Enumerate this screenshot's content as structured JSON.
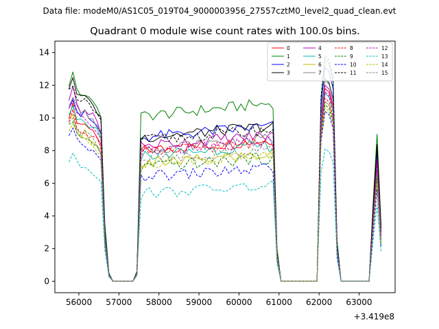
{
  "header": {
    "data_file": "Data file: modeM0/AS1C05_019T04_9000003956_27557cztM0_level2_quad_clean.evt",
    "title": "Quadrant 0 module wise count rates with 100.0s bins."
  },
  "chart_data": {
    "type": "line",
    "title": "Quadrant 0 module wise count rates with 100.0s bins.",
    "xlabel": "",
    "ylabel": "",
    "x_offset_label": "+3.419e8",
    "xlim": [
      55400,
      63900
    ],
    "ylim": [
      -0.7,
      14.7
    ],
    "xticks": [
      56000,
      57000,
      58000,
      59000,
      60000,
      61000,
      62000,
      63000
    ],
    "yticks": [
      0,
      2,
      4,
      6,
      8,
      10,
      12,
      14
    ],
    "x_start": 55750,
    "x_step": 100,
    "segments": [
      {
        "from": 55750,
        "to": 56550,
        "kind": "on",
        "shape": "decline",
        "ramp": [
          1.0,
          1.05,
          0.97,
          0.94,
          0.95,
          0.92,
          0.9,
          0.88,
          0.83
        ]
      },
      {
        "from": 56650,
        "to": 56750,
        "kind": "ramp",
        "factors": [
          0.35,
          0.05
        ]
      },
      {
        "from": 56850,
        "to": 57350,
        "kind": "off"
      },
      {
        "from": 57450,
        "to": 57450,
        "kind": "ramp",
        "factors": [
          0.06
        ]
      },
      {
        "from": 57550,
        "to": 60850,
        "kind": "on",
        "shape": "plateau"
      },
      {
        "from": 60950,
        "to": 60950,
        "kind": "ramp",
        "factors": [
          0.2
        ]
      },
      {
        "from": 61050,
        "to": 61950,
        "kind": "off"
      },
      {
        "from": 62050,
        "to": 62350,
        "kind": "peak",
        "factors": [
          0.82,
          1.0,
          0.98,
          0.9
        ]
      },
      {
        "from": 62450,
        "to": 62450,
        "kind": "ramp",
        "factors": [
          0.25
        ]
      },
      {
        "from": 62550,
        "to": 63250,
        "kind": "off"
      },
      {
        "from": 63350,
        "to": 63550,
        "kind": "peak",
        "factors": [
          0.45,
          0.85,
          0.32
        ]
      }
    ],
    "series": [
      {
        "name": "0",
        "color": "#ff0000",
        "dash": "solid",
        "start": 10.2,
        "plateau": 8.0,
        "peak": 11.8,
        "end": 8.5
      },
      {
        "name": "1",
        "color": "#008000",
        "dash": "solid",
        "start": 12.1,
        "plateau": 10.1,
        "peak": 13.6,
        "end": 10.6
      },
      {
        "name": "2",
        "color": "#0000ff",
        "dash": "solid",
        "start": 10.8,
        "plateau": 8.8,
        "peak": 13.1,
        "end": 9.4
      },
      {
        "name": "3",
        "color": "#000000",
        "dash": "solid",
        "start": 11.9,
        "plateau": 8.8,
        "peak": 12.4,
        "end": 9.9
      },
      {
        "name": "4",
        "color": "#bf00bf",
        "dash": "solid",
        "start": 11.2,
        "plateau": 8.3,
        "peak": 12.0,
        "end": 8.8
      },
      {
        "name": "5",
        "color": "#00bfa0",
        "dash": "solid",
        "start": 10.4,
        "plateau": 7.7,
        "peak": 11.5,
        "end": 8.2
      },
      {
        "name": "6",
        "color": "#bfbf00",
        "dash": "solid",
        "start": 9.6,
        "plateau": 7.2,
        "peak": 11.0,
        "end": 7.6
      },
      {
        "name": "7",
        "color": "#808080",
        "dash": "solid",
        "start": 10.9,
        "plateau": 8.1,
        "peak": 12.3,
        "end": 7.2
      },
      {
        "name": "8",
        "color": "#ff0000",
        "dash": "dashed",
        "start": 9.8,
        "plateau": 7.9,
        "peak": 11.2,
        "end": 8.0
      },
      {
        "name": "9",
        "color": "#008000",
        "dash": "dashed",
        "start": 9.4,
        "plateau": 7.0,
        "peak": 10.8,
        "end": 7.4
      },
      {
        "name": "10",
        "color": "#0000ff",
        "dash": "dashed",
        "start": 8.8,
        "plateau": 6.4,
        "peak": 10.4,
        "end": 6.6
      },
      {
        "name": "11",
        "color": "#000000",
        "dash": "dashed",
        "start": 11.6,
        "plateau": 8.6,
        "peak": 13.8,
        "end": 9.6
      },
      {
        "name": "12",
        "color": "#bf00bf",
        "dash": "dashed",
        "start": 10.6,
        "plateau": 7.9,
        "peak": 11.6,
        "end": 8.6
      },
      {
        "name": "13",
        "color": "#00bfbf",
        "dash": "dashed",
        "start": 7.4,
        "plateau": 5.4,
        "peak": 8.1,
        "end": 5.5
      },
      {
        "name": "14",
        "color": "#bfbf00",
        "dash": "dashed",
        "start": 9.2,
        "plateau": 7.2,
        "peak": 10.6,
        "end": 7.1
      },
      {
        "name": "15",
        "color": "#808080",
        "dash": "dashed",
        "start": 9.7,
        "plateau": 7.5,
        "peak": 11.0,
        "end": 7.8
      }
    ],
    "legend": {
      "placement": "top-right",
      "columns": 4
    }
  }
}
